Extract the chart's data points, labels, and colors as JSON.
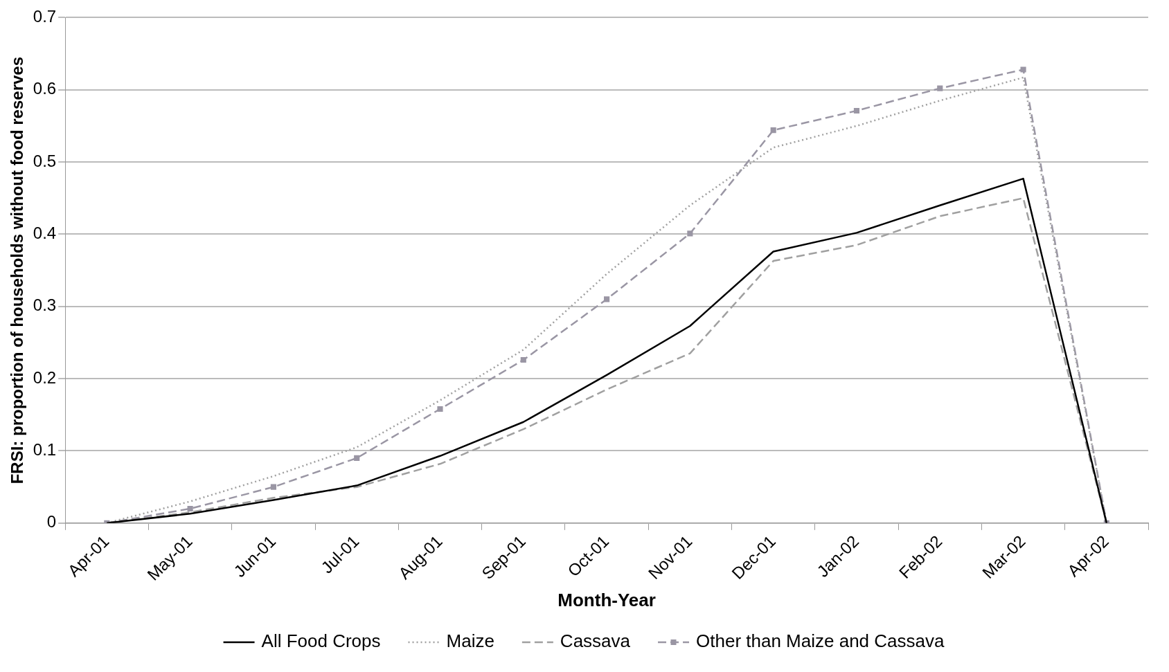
{
  "chart_data": {
    "type": "line",
    "xlabel": "Month-Year",
    "ylabel": "FRSI: proportion of households without food reserves",
    "categories": [
      "Apr-01",
      "May-01",
      "Jun-01",
      "Jul-01",
      "Aug-01",
      "Sep-01",
      "Oct-01",
      "Nov-01",
      "Dec-01",
      "Jan-02",
      "Feb-02",
      "Mar-02",
      "Apr-02"
    ],
    "series": [
      {
        "name": "All Food Crops",
        "color": "#000000",
        "line_style": "solid",
        "marker": "none",
        "values": [
          0,
          0.013,
          0.032,
          0.052,
          0.093,
          0.14,
          0.205,
          0.273,
          0.376,
          0.402,
          0.44,
          0.477,
          0
        ]
      },
      {
        "name": "Maize",
        "color": "#a0a0a0",
        "line_style": "dotted",
        "marker": "none",
        "values": [
          0,
          0.03,
          0.065,
          0.105,
          0.17,
          0.24,
          0.345,
          0.44,
          0.52,
          0.55,
          0.585,
          0.617,
          0
        ]
      },
      {
        "name": "Cassava",
        "color": "#a0a0a0",
        "line_style": "dashed",
        "marker": "none",
        "values": [
          0,
          0.015,
          0.035,
          0.05,
          0.082,
          0.13,
          0.185,
          0.235,
          0.363,
          0.385,
          0.425,
          0.45,
          0
        ]
      },
      {
        "name": "Other than Maize and Cassava",
        "color": "#9a96a4",
        "line_style": "dashed",
        "marker": "square",
        "values": [
          0,
          0.02,
          0.05,
          0.09,
          0.158,
          0.226,
          0.31,
          0.401,
          0.544,
          0.571,
          0.602,
          0.628,
          0
        ]
      }
    ],
    "ylim": [
      0,
      0.7
    ],
    "yticks": [
      0,
      0.1,
      0.2,
      0.3,
      0.4,
      0.5,
      0.6,
      0.7
    ],
    "grid": "y",
    "legend": "bottom"
  }
}
